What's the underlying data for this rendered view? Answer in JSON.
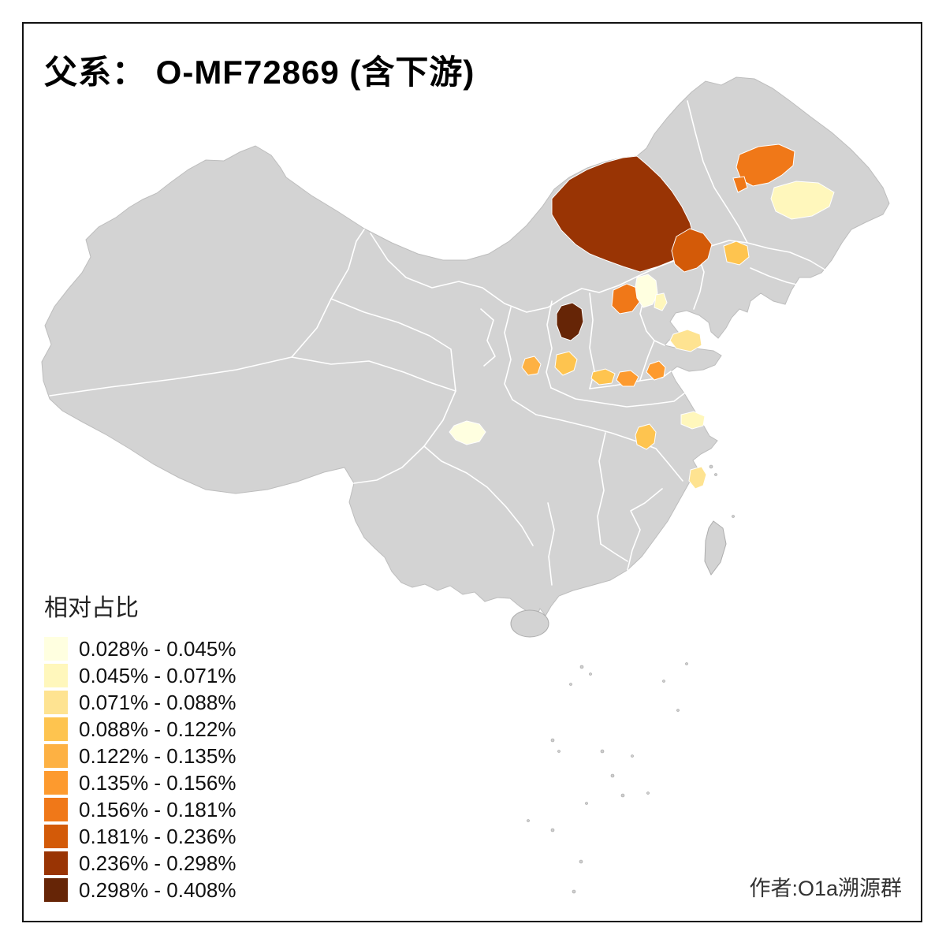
{
  "title": "父系： O-MF72869 (含下游)",
  "author": "作者:O1a溯源群",
  "legend": {
    "title": "相对占比",
    "bins": [
      {
        "label": "0.028% - 0.045%",
        "color": "#FFFFE0"
      },
      {
        "label": "0.045% - 0.071%",
        "color": "#FFF7BC"
      },
      {
        "label": "0.071% - 0.088%",
        "color": "#FEE391"
      },
      {
        "label": "0.088% - 0.122%",
        "color": "#FEC44F"
      },
      {
        "label": "0.122% - 0.135%",
        "color": "#FDB143"
      },
      {
        "label": "0.135% - 0.156%",
        "color": "#FD9A2E"
      },
      {
        "label": "0.156% - 0.181%",
        "color": "#F07818"
      },
      {
        "label": "0.181% - 0.236%",
        "color": "#D35A08"
      },
      {
        "label": "0.236% - 0.298%",
        "color": "#993404"
      },
      {
        "label": "0.298% - 0.408%",
        "color": "#662506"
      }
    ]
  },
  "map": {
    "land_color": "#D3D3D3",
    "province_border_color": "#FFFFFF",
    "coast_color": "#BDBDBD",
    "sea_color": "#FFFFFF",
    "regions": [
      {
        "bin": 7
      },
      {
        "bin": 7
      },
      {
        "bin": 2
      },
      {
        "bin": 9
      },
      {
        "bin": 8
      },
      {
        "bin": 4
      },
      {
        "bin": 7
      },
      {
        "bin": 1
      },
      {
        "bin": 2
      },
      {
        "bin": 10
      },
      {
        "bin": 5
      },
      {
        "bin": 4
      },
      {
        "bin": 4
      },
      {
        "bin": 6
      },
      {
        "bin": 6
      },
      {
        "bin": 3
      },
      {
        "bin": 4
      },
      {
        "bin": 2
      },
      {
        "bin": 3
      },
      {
        "bin": 1
      }
    ]
  },
  "chart_data": {
    "type": "choropleth",
    "title": "父系： O-MF72869 (含下游)",
    "legend_title": "相对占比",
    "bin_labels": [
      "0.028% - 0.045%",
      "0.045% - 0.071%",
      "0.071% - 0.088%",
      "0.088% - 0.122%",
      "0.122% - 0.135%",
      "0.135% - 0.156%",
      "0.156% - 0.181%",
      "0.181% - 0.236%",
      "0.236% - 0.298%",
      "0.298% - 0.408%"
    ],
    "region_bins": [
      7,
      7,
      2,
      9,
      8,
      4,
      7,
      1,
      2,
      10,
      5,
      4,
      4,
      6,
      6,
      3,
      4,
      2,
      3,
      1
    ],
    "highlighted_region_count": 20
  }
}
